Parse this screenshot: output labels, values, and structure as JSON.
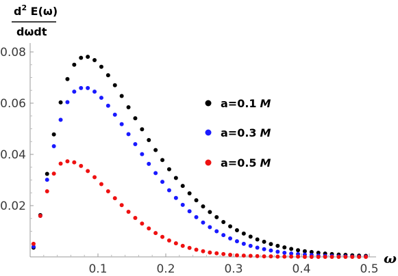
{
  "chart_data": {
    "type": "scatter",
    "title": "",
    "xlabel": "ω",
    "ylabel": {
      "numerator": "d",
      "numerator_sup": "2",
      "numerator_rest": " E(ω)",
      "denominator": "dωdt"
    },
    "xlim": [
      0,
      0.5
    ],
    "ylim": [
      0,
      0.08
    ],
    "x_ticks": [
      {
        "value": 0.1,
        "label": "0.1"
      },
      {
        "value": 0.2,
        "label": "0.2"
      },
      {
        "value": 0.3,
        "label": "0.3"
      },
      {
        "value": 0.4,
        "label": "0.4"
      },
      {
        "value": 0.5,
        "label": "0.5"
      }
    ],
    "y_ticks": [
      {
        "value": 0.02,
        "label": "0.02"
      },
      {
        "value": 0.04,
        "label": "0.04"
      },
      {
        "value": 0.06,
        "label": "0.06"
      },
      {
        "value": 0.08,
        "label": "0.08"
      }
    ],
    "grid": false,
    "legend_position": "right",
    "x": [
      0.005,
      0.015,
      0.025,
      0.035,
      0.045,
      0.055,
      0.065,
      0.075,
      0.085,
      0.095,
      0.105,
      0.115,
      0.125,
      0.135,
      0.145,
      0.155,
      0.165,
      0.175,
      0.185,
      0.195,
      0.205,
      0.215,
      0.225,
      0.235,
      0.245,
      0.255,
      0.265,
      0.275,
      0.285,
      0.295,
      0.305,
      0.315,
      0.325,
      0.335,
      0.345,
      0.355,
      0.365,
      0.375,
      0.385,
      0.395,
      0.405,
      0.415,
      0.425,
      0.435,
      0.445,
      0.455,
      0.465,
      0.475,
      0.485,
      0.495
    ],
    "series": [
      {
        "name": "a=0.1",
        "unit": "M",
        "color": "#000000",
        "values": [
          0.0036,
          0.0163,
          0.0324,
          0.0478,
          0.0603,
          0.0694,
          0.075,
          0.0777,
          0.0781,
          0.0768,
          0.0742,
          0.0709,
          0.067,
          0.0628,
          0.0584,
          0.0541,
          0.0498,
          0.0456,
          0.0417,
          0.0378,
          0.0342,
          0.0308,
          0.0277,
          0.0248,
          0.0221,
          0.0197,
          0.0175,
          0.0155,
          0.0136,
          0.0119,
          0.0104,
          0.0091,
          0.0079,
          0.0068,
          0.0059,
          0.005,
          0.0043,
          0.0037,
          0.0031,
          0.0026,
          0.0022,
          0.0019,
          0.0016,
          0.0013,
          0.0011,
          0.0009,
          0.0008,
          0.0006,
          0.0005,
          0.0004
        ]
      },
      {
        "name": "a=0.3",
        "unit": "M",
        "color": "#1a1aff",
        "values": [
          0.004,
          0.016,
          0.0301,
          0.0432,
          0.0535,
          0.0604,
          0.0645,
          0.0659,
          0.0659,
          0.0645,
          0.0621,
          0.059,
          0.0555,
          0.0518,
          0.0479,
          0.044,
          0.0401,
          0.0363,
          0.0327,
          0.0293,
          0.026,
          0.023,
          0.0203,
          0.0178,
          0.0155,
          0.0134,
          0.0116,
          0.01,
          0.0085,
          0.0072,
          0.0061,
          0.0051,
          0.0043,
          0.0036,
          0.003,
          0.0025,
          0.002,
          0.0016,
          0.0013,
          0.0011,
          0.0009,
          0.0007,
          0.0005,
          0.0004,
          0.0003,
          0.0002,
          0.0002,
          0.0001,
          0.0001,
          0.0001
        ]
      },
      {
        "name": "a=0.5",
        "unit": "M",
        "color": "#ee1111",
        "values": [
          0.0051,
          0.016,
          0.0256,
          0.0325,
          0.0364,
          0.0373,
          0.0369,
          0.0355,
          0.0335,
          0.0311,
          0.0284,
          0.0256,
          0.0229,
          0.0202,
          0.0176,
          0.0152,
          0.013,
          0.0111,
          0.0093,
          0.0078,
          0.0064,
          0.0053,
          0.0043,
          0.0035,
          0.0028,
          0.0022,
          0.0017,
          0.0014,
          0.0011,
          0.0008,
          0.0006,
          0.0005,
          0.0004,
          0.0003,
          0.0002,
          0.0002,
          0.0001,
          0.0001,
          0.0001,
          0.0001,
          0.0,
          0.0,
          0.0,
          0.0,
          0.0,
          0.0,
          0.0,
          0.0,
          0.0,
          0.0
        ]
      }
    ]
  }
}
